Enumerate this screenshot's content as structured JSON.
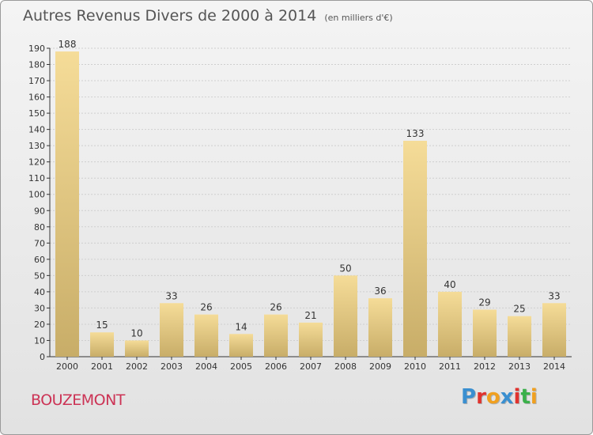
{
  "header": {
    "title": "Autres Revenus Divers de 2000 à 2014",
    "unit": "(en milliers d'€)"
  },
  "commune": "BOUZEMONT",
  "logo": {
    "text": "Proxiti",
    "letters": [
      {
        "ch": "P",
        "color": "#3a8fd0"
      },
      {
        "ch": "r",
        "color": "#e0332e"
      },
      {
        "ch": "o",
        "color": "#f0a020"
      },
      {
        "ch": "x",
        "color": "#3a8fd0"
      },
      {
        "ch": "i",
        "color": "#e0332e"
      },
      {
        "ch": "t",
        "color": "#3ab04a"
      },
      {
        "ch": "i",
        "color": "#f0a020"
      }
    ]
  },
  "colors": {
    "bar_top": "#f5dc98",
    "bar_bottom": "#c8ad68",
    "axis": "#333333",
    "grid": "#cfcfcf",
    "text": "#333333"
  },
  "chart_data": {
    "type": "bar",
    "categories": [
      "2000",
      "2001",
      "2002",
      "2003",
      "2004",
      "2005",
      "2006",
      "2007",
      "2008",
      "2009",
      "2010",
      "2011",
      "2012",
      "2013",
      "2014"
    ],
    "values": [
      188,
      15,
      10,
      33,
      26,
      14,
      26,
      21,
      50,
      36,
      133,
      40,
      29,
      25,
      33
    ],
    "data_labels": [
      "188",
      "15",
      "10",
      "33",
      "26",
      "14",
      "26",
      "21",
      "50",
      "36",
      "133",
      "40",
      "29",
      "25",
      "33"
    ],
    "ylim": [
      0,
      190
    ],
    "yticks": [
      0,
      10,
      20,
      30,
      40,
      50,
      60,
      70,
      80,
      90,
      100,
      110,
      120,
      130,
      140,
      150,
      160,
      170,
      180,
      190
    ],
    "grid": true
  }
}
